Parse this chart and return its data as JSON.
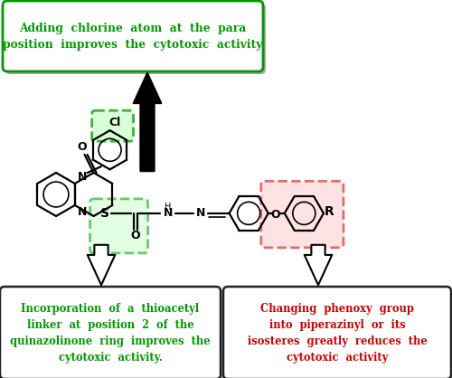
{
  "bg_color": "#ffffff",
  "figure_size": [
    5.0,
    4.18
  ],
  "dpi": 100,
  "top_box_text": "Adding  chlorine  atom  at  the  para\nposition  improves  the  cytotoxic  activity",
  "top_box_text_color": "#009900",
  "top_box_border_color": "#009900",
  "bottom_left_text": "Incorporation  of  a  thioacetyl\nlinker  at  position  2  of  the\nquinazolinone  ring  improves  the\ncytotoxic  activity.",
  "bottom_left_text_color": "#009900",
  "bottom_right_text": "Changing  phenoxy  group\ninto  piperazinyl  or  its\nisosteres  greatly  reduces  the\ncytotoxic  activity",
  "bottom_right_text_color": "#cc0000",
  "box_border_color": "#222222",
  "shadow_color": "#aaaaaa"
}
